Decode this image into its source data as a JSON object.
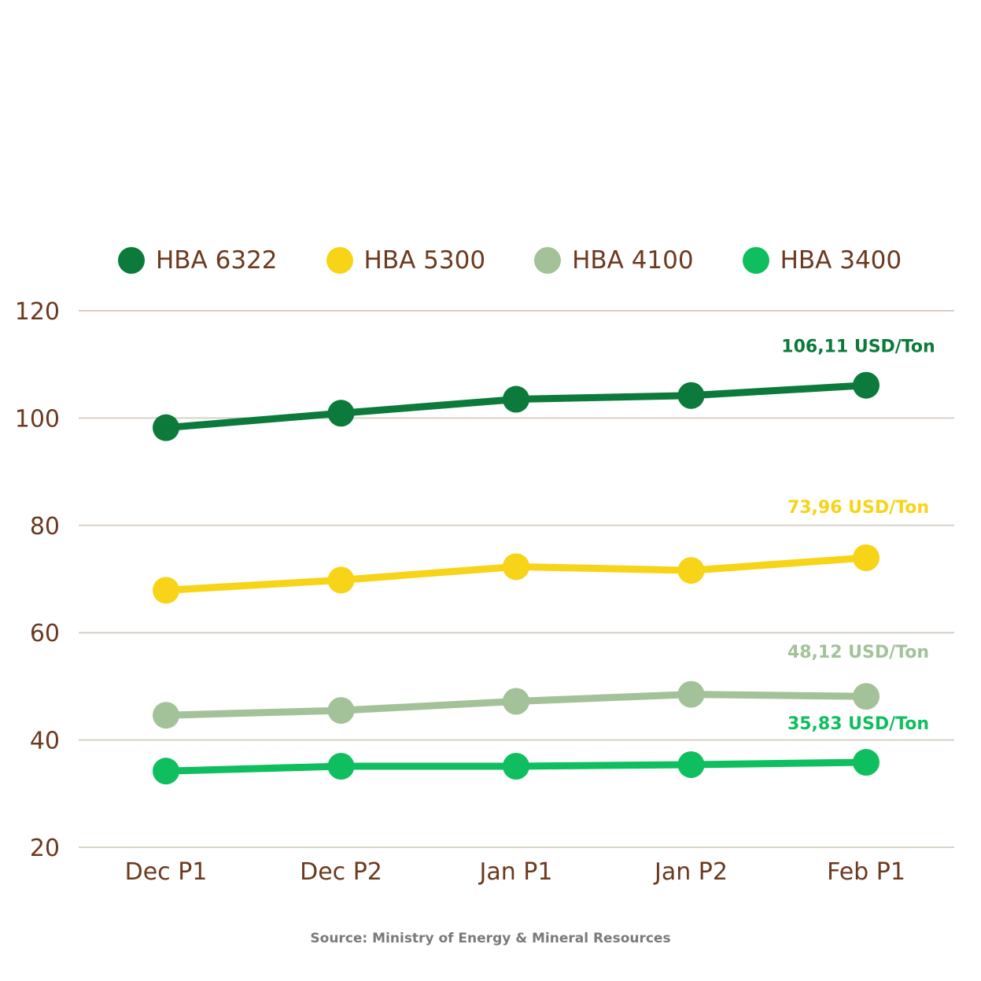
{
  "chart_data": {
    "type": "line",
    "categories": [
      "Dec P1",
      "Dec P2",
      "Jan P1",
      "Jan P2",
      "Feb P1"
    ],
    "ylim": [
      20,
      120
    ],
    "yticks": [
      20,
      40,
      60,
      80,
      100,
      120
    ],
    "grid": true,
    "legend_position": "top",
    "series": [
      {
        "name": "HBA 6322",
        "color": "#0b7a3b",
        "values": [
          98.2,
          100.9,
          103.5,
          104.2,
          106.11
        ],
        "end_label": "106,11 USD/Ton"
      },
      {
        "name": "HBA 5300",
        "color": "#f7d417",
        "values": [
          67.9,
          69.8,
          72.3,
          71.6,
          73.96
        ],
        "end_label": "73,96 USD/Ton"
      },
      {
        "name": "HBA 4100",
        "color": "#a3c29a",
        "values": [
          44.6,
          45.5,
          47.2,
          48.5,
          48.12
        ],
        "end_label": "48,12 USD/Ton"
      },
      {
        "name": "HBA 3400",
        "color": "#0fbf5f",
        "values": [
          34.2,
          35.1,
          35.1,
          35.4,
          35.83
        ],
        "end_label": "35,83 USD/Ton"
      }
    ],
    "source": "Source: Ministry of Energy & Mineral Resources"
  }
}
